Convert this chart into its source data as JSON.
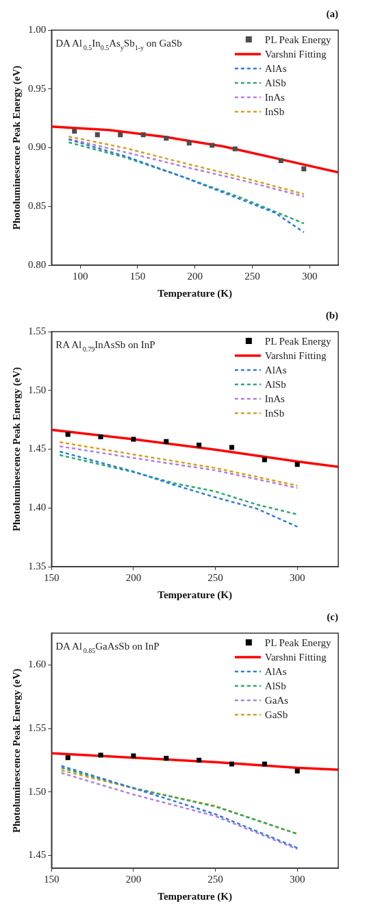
{
  "chart_data": [
    {
      "type": "line",
      "title": "(a)",
      "xlabel": "Temperature (K)",
      "ylabel": "Photoluminescence Peak Energy (eV)",
      "annotations": [
        "DA Al$_{0.5}$In$_{0.5}$As$_{y}$Sb$_{1-y}$ on GaSb"
      ],
      "xlim": [
        75,
        325
      ],
      "xticks": [
        100,
        150,
        200,
        250,
        300
      ],
      "ylim": [
        0.8,
        1.0
      ],
      "yticks": [
        {
          "value": 0.8,
          "label": "0.80"
        },
        0.85,
        {
          "value": 0.9,
          "label": "0.90"
        },
        0.95,
        {
          "value": 1.0,
          "label": "1.00"
        }
      ],
      "legend": "top right",
      "series": [
        {
          "name": "PL Peak Energy",
          "type": "scatter",
          "marker": "square",
          "color": "#4d4d4d",
          "x": [
            95,
            115,
            135,
            155,
            175,
            195,
            215,
            235,
            275,
            295
          ],
          "values": [
            0.914,
            0.911,
            0.911,
            0.911,
            0.908,
            0.904,
            0.902,
            0.899,
            0.889,
            0.882
          ]
        },
        {
          "name": "Varshni Fitting",
          "type": "line",
          "line_style": "solid",
          "color": "#ff0000",
          "x": [
            75,
            125,
            175,
            225,
            275,
            325
          ],
          "values": [
            0.918,
            0.915,
            0.909,
            0.901,
            0.89,
            0.879
          ]
        },
        {
          "name": "AlAs",
          "type": "line",
          "line_style": "dashed",
          "color": "#2d7be0",
          "x": [
            90,
            140,
            190,
            240,
            270,
            295
          ],
          "values": [
            0.907,
            0.8925,
            0.875,
            0.856,
            0.8445,
            0.828
          ]
        },
        {
          "name": "AlSb",
          "type": "line",
          "line_style": "dashed",
          "color": "#2ca86e",
          "x": [
            90,
            140,
            190,
            240,
            295
          ],
          "values": [
            0.9045,
            0.8915,
            0.875,
            0.8575,
            0.8355
          ]
        },
        {
          "name": "InAs",
          "type": "line",
          "line_style": "dashed",
          "color": "#b07fe0",
          "x": [
            90,
            140,
            190,
            240,
            295
          ],
          "values": [
            0.9075,
            0.896,
            0.884,
            0.8725,
            0.8585
          ]
        },
        {
          "name": "InSb",
          "type": "line",
          "line_style": "dashed",
          "color": "#d4a017",
          "x": [
            90,
            140,
            190,
            240,
            295
          ],
          "values": [
            0.9095,
            0.8995,
            0.887,
            0.875,
            0.8605
          ]
        }
      ]
    },
    {
      "type": "line",
      "title": "(b)",
      "xlabel": "Temperature (K)",
      "ylabel": "Photoluminescence Peak Energy (eV)",
      "annotations": [
        "RA Al$_{0.79}$InAsSb on InP"
      ],
      "xlim": [
        150,
        325
      ],
      "xticks": [
        150,
        200,
        250,
        300
      ],
      "ylim": [
        1.35,
        1.55
      ],
      "yticks": [
        1.35,
        {
          "value": 1.4,
          "label": "1.40"
        },
        1.45,
        {
          "value": 1.5,
          "label": "1.50"
        },
        1.55
      ],
      "legend": "top right",
      "series": [
        {
          "name": "PL Peak Energy",
          "type": "scatter",
          "marker": "square",
          "color": "#000000",
          "x": [
            160,
            180,
            200,
            220,
            240,
            260,
            280,
            300
          ],
          "values": [
            1.4625,
            1.4605,
            1.4585,
            1.4565,
            1.4535,
            1.4515,
            1.441,
            1.437
          ]
        },
        {
          "name": "Varshni Fitting",
          "type": "line",
          "line_style": "solid",
          "color": "#ff0000",
          "x": [
            150,
            200,
            250,
            300,
            325
          ],
          "values": [
            1.4665,
            1.4585,
            1.4495,
            1.4395,
            1.435
          ]
        },
        {
          "name": "AlAs",
          "type": "line",
          "line_style": "dashed",
          "color": "#2d7be0",
          "x": [
            155,
            200,
            225,
            250,
            275,
            300
          ],
          "values": [
            1.448,
            1.431,
            1.4195,
            1.409,
            1.3995,
            1.384
          ]
        },
        {
          "name": "AlSb",
          "type": "line",
          "line_style": "dashed",
          "color": "#2ca86e",
          "x": [
            155,
            200,
            225,
            250,
            275,
            300
          ],
          "values": [
            1.445,
            1.4305,
            1.421,
            1.414,
            1.403,
            1.3945
          ]
        },
        {
          "name": "InAs",
          "type": "line",
          "line_style": "dashed",
          "color": "#b07fe0",
          "x": [
            155,
            200,
            250,
            300
          ],
          "values": [
            1.4525,
            1.4425,
            1.432,
            1.417
          ]
        },
        {
          "name": "InSb",
          "type": "line",
          "line_style": "dashed",
          "color": "#d4a017",
          "x": [
            155,
            200,
            250,
            300
          ],
          "values": [
            1.456,
            1.4455,
            1.434,
            1.419
          ]
        }
      ]
    },
    {
      "type": "line",
      "title": "(c)",
      "xlabel": "Temperature (K)",
      "ylabel": "Photoluminescence Peak Energy (eV)",
      "annotations": [
        "DA Al$_{0.85}$GaAsSb on InP"
      ],
      "xlim": [
        150,
        325
      ],
      "xticks": [
        150,
        200,
        250,
        300
      ],
      "ylim": [
        1.44,
        1.625
      ],
      "yticks": [
        1.45,
        {
          "value": 1.5,
          "label": "1.50"
        },
        1.55,
        {
          "value": 1.6,
          "label": "1.60"
        }
      ],
      "legend": "top right",
      "series": [
        {
          "name": "PL Peak Energy",
          "type": "scatter",
          "marker": "square",
          "color": "#000000",
          "x": [
            160,
            180,
            200,
            220,
            240,
            260,
            280,
            300
          ],
          "values": [
            1.527,
            1.529,
            1.5285,
            1.5265,
            1.525,
            1.522,
            1.522,
            1.5165
          ]
        },
        {
          "name": "Varshni Fitting",
          "type": "line",
          "line_style": "solid",
          "color": "#ff0000",
          "x": [
            150,
            200,
            250,
            300,
            325
          ],
          "values": [
            1.5305,
            1.527,
            1.5235,
            1.519,
            1.5175
          ]
        },
        {
          "name": "AlAs",
          "type": "line",
          "line_style": "dashed",
          "color": "#2d7be0",
          "x": [
            156,
            200,
            250,
            300
          ],
          "values": [
            1.5205,
            1.503,
            1.4825,
            1.456
          ]
        },
        {
          "name": "AlSb",
          "type": "line",
          "line_style": "dashed",
          "color": "#2ca86e",
          "x": [
            156,
            200,
            250,
            300
          ],
          "values": [
            1.519,
            1.503,
            1.4885,
            1.467
          ]
        },
        {
          "name": "GaAs",
          "type": "line",
          "line_style": "dashed",
          "color": "#b07fe0",
          "x": [
            156,
            200,
            250,
            300
          ],
          "values": [
            1.515,
            1.498,
            1.481,
            1.455
          ]
        },
        {
          "name": "GaSb",
          "type": "line",
          "line_style": "dashed",
          "color": "#d4a017",
          "x": [
            156,
            200,
            250,
            300
          ],
          "values": [
            1.517,
            1.503,
            1.489,
            1.467
          ]
        }
      ]
    }
  ]
}
